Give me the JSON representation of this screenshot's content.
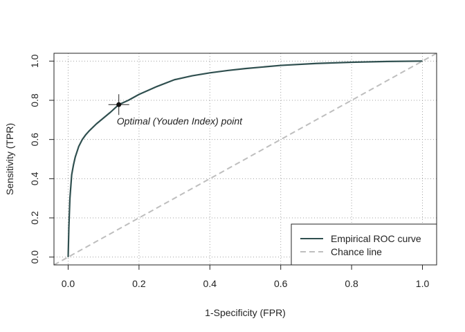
{
  "chart_data": {
    "type": "line",
    "title": "",
    "xlabel": "1-Specificity (FPR)",
    "ylabel": "Sensitivity (TPR)",
    "xlim": [
      -0.04,
      1.04
    ],
    "ylim": [
      -0.04,
      1.04
    ],
    "xticks": [
      0.0,
      0.2,
      0.4,
      0.6,
      0.8,
      1.0
    ],
    "xtick_labels": [
      "0.0",
      "0.2",
      "0.4",
      "0.6",
      "0.8",
      "1.0"
    ],
    "yticks": [
      0.0,
      0.2,
      0.4,
      0.6,
      0.8,
      1.0
    ],
    "ytick_labels": [
      "0.0",
      "0.2",
      "0.4",
      "0.6",
      "0.8",
      "1.0"
    ],
    "grid": true,
    "legend_position": "bottom-right",
    "series": [
      {
        "name": "Empirical ROC curve",
        "color": "#2f4f4f",
        "style": "solid",
        "x": [
          0,
          0.002,
          0.005,
          0.01,
          0.015,
          0.02,
          0.03,
          0.04,
          0.05,
          0.06,
          0.08,
          0.1,
          0.12,
          0.143,
          0.17,
          0.2,
          0.25,
          0.3,
          0.35,
          0.4,
          0.45,
          0.5,
          0.6,
          0.7,
          0.8,
          0.9,
          1.0
        ],
        "y": [
          0,
          0.15,
          0.3,
          0.42,
          0.47,
          0.51,
          0.565,
          0.6,
          0.625,
          0.645,
          0.68,
          0.71,
          0.74,
          0.778,
          0.8,
          0.83,
          0.87,
          0.905,
          0.925,
          0.94,
          0.952,
          0.962,
          0.978,
          0.988,
          0.994,
          0.998,
          1.0
        ]
      },
      {
        "name": "Chance line",
        "color": "#bebebe",
        "style": "dashed",
        "x": [
          0,
          1
        ],
        "y": [
          0,
          1
        ]
      }
    ],
    "optimal_point": {
      "x": 0.143,
      "y": 0.778,
      "label": "Optimal (Youden Index) point"
    }
  }
}
